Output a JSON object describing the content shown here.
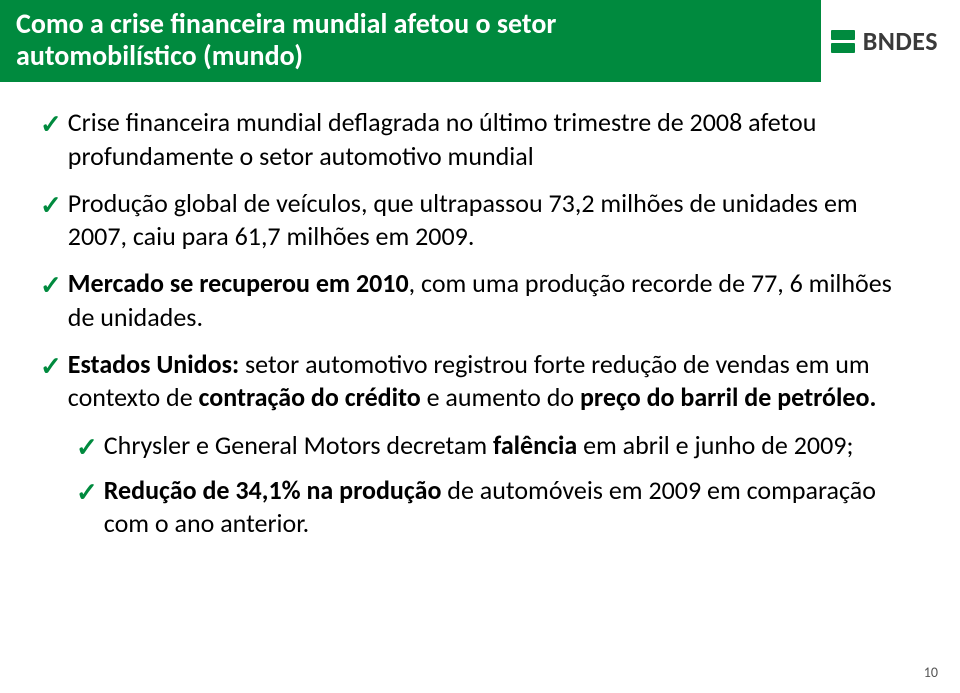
{
  "colors": {
    "header_bg": "#008a3e",
    "title_text": "#ffffff",
    "logo_green": "#008a3e",
    "logo_text": "#3a3a3a",
    "check": "#008a3e",
    "body_text": "#000000"
  },
  "title": {
    "line1": "Como a crise financeira mundial afetou o setor",
    "line2": "automobilístico (mundo)",
    "fontsize": 28
  },
  "logo": {
    "text": "BNDES"
  },
  "bullets": [
    {
      "level": 1,
      "runs": [
        {
          "text": "Crise financeira mundial deflagrada no último trimestre de 2008 afetou profundamente o setor automotivo mundial",
          "bold": false
        }
      ]
    },
    {
      "level": 1,
      "runs": [
        {
          "text": "Produção global de veículos, que ultrapassou 73,2 milhões de unidades em 2007, caiu para 61,7 milhões em 2009.",
          "bold": false
        }
      ]
    },
    {
      "level": 1,
      "runs": [
        {
          "text": "Mercado se recuperou em 2010",
          "bold": true
        },
        {
          "text": ", com uma produção recorde de 77, 6 milhões de unidades.",
          "bold": false
        }
      ]
    },
    {
      "level": 1,
      "runs": [
        {
          "text": "Estados Unidos: ",
          "bold": true
        },
        {
          "text": "setor automotivo registrou forte redução de vendas em um contexto de ",
          "bold": false
        },
        {
          "text": "contração do crédito ",
          "bold": true
        },
        {
          "text": "e aumento do ",
          "bold": false
        },
        {
          "text": "preço do barril de petróleo.",
          "bold": true
        }
      ]
    },
    {
      "level": 2,
      "runs": [
        {
          "text": "Chrysler e General Motors decretam ",
          "bold": false
        },
        {
          "text": "falência ",
          "bold": true
        },
        {
          "text": "em abril e junho de 2009;",
          "bold": false
        }
      ]
    },
    {
      "level": 2,
      "runs": [
        {
          "text": "Redução de 34,1% na produção ",
          "bold": true
        },
        {
          "text": "de automóveis em 2009 em comparação com o ano anterior.",
          "bold": false
        }
      ]
    }
  ],
  "page_number": "10",
  "check_glyph": "✓"
}
